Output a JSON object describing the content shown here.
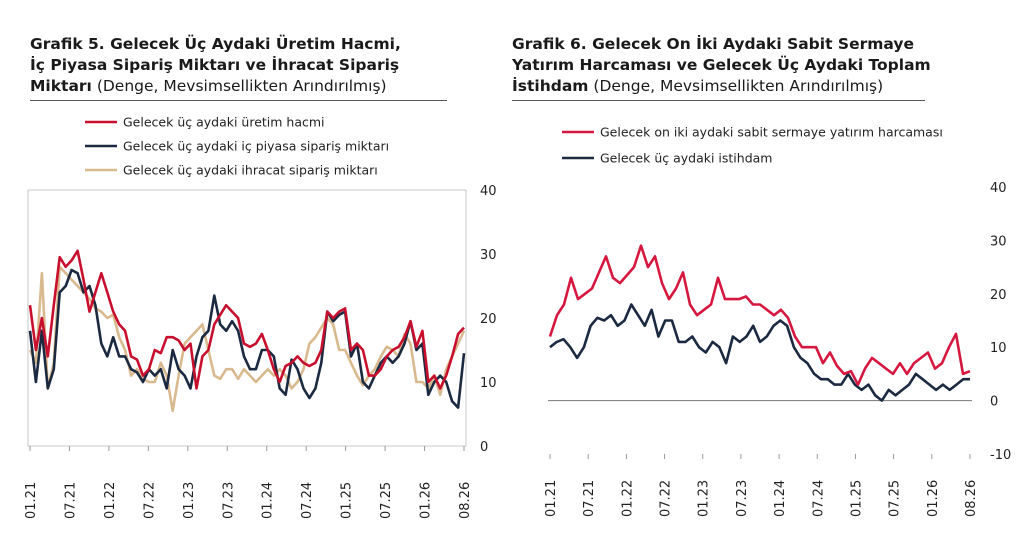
{
  "colors": {
    "red": "#c8102e",
    "navy": "#1b2a41",
    "beige": "#d9b98e",
    "rose": "#d6173f",
    "grid": "#c8c8c8"
  },
  "chart_data": [
    {
      "type": "line",
      "title_bold": "Grafik 5. Gelecek Üç Aydaki Üretim Hacmi, İç Piyasa Sipariş Miktarı ve İhracat Sipariş Miktarı",
      "title_normal": "(Denge, Mevsimsellikten Arındırılmış)",
      "title_lines": [
        "Grafik 5. Gelecek Üç Aydaki Üretim Hacmi,",
        "İç Piyasa Sipariş Miktarı ve İhracat Sipariş",
        "Miktarı"
      ],
      "ylim": [
        0,
        40
      ],
      "yticks": [
        "0",
        "10",
        "20",
        "30",
        "40"
      ],
      "xticks": [
        "01.21",
        "07.21",
        "01.22",
        "07.22",
        "01.23",
        "07.23",
        "01.24",
        "07.24",
        "01.25",
        "07.25",
        "01.26",
        "08.26"
      ],
      "legend": "top",
      "series": [
        {
          "name": "Gelecek üç aydaki üretim hacmi",
          "color": "#c8102e",
          "values": [
            22,
            15,
            20,
            14,
            22,
            29.5,
            28,
            29,
            30.5,
            26,
            21,
            24,
            27,
            24,
            21,
            19,
            18,
            14,
            13.5,
            11,
            12,
            15,
            14.5,
            17,
            17,
            16.5,
            15,
            16,
            9,
            14,
            15,
            19,
            20.5,
            22,
            21,
            20,
            16,
            15.5,
            16,
            17.5,
            15,
            12,
            10,
            12.5,
            13,
            14,
            13,
            12.5,
            13,
            15,
            21,
            20,
            21,
            21.5,
            15,
            16,
            15,
            11,
            11,
            12,
            14,
            15,
            15.5,
            17,
            19.5,
            15.5,
            18,
            10,
            11,
            9,
            11,
            14,
            17.5,
            18.5
          ]
        },
        {
          "name": "Gelecek üç aydaki iç piyasa sipariş miktarı",
          "color": "#1b2a41",
          "values": [
            18,
            10,
            18,
            9,
            12,
            24,
            25,
            27.5,
            27,
            24,
            25,
            22,
            16,
            14,
            17,
            14,
            14,
            12,
            11.5,
            10,
            12,
            11,
            12,
            9,
            15,
            12,
            11,
            9,
            14,
            17,
            18,
            23.5,
            19,
            18,
            19.5,
            18,
            14,
            12,
            12,
            15,
            15,
            14,
            9,
            8,
            13.5,
            12,
            9,
            7.5,
            9,
            13,
            21,
            19.5,
            20.5,
            21,
            14,
            16,
            10,
            9,
            11,
            13,
            14,
            13,
            14,
            16,
            19.5,
            15,
            16,
            8,
            10,
            11,
            10,
            7,
            6,
            14.5
          ]
        },
        {
          "name": "Gelecek üç aydaki ihracat sipariş miktarı",
          "color": "#d9b98e",
          "values": [
            15,
            13,
            27,
            9,
            13,
            28,
            27,
            26,
            25,
            24,
            23,
            21.5,
            21,
            20,
            20.5,
            17,
            15,
            11,
            12,
            10.5,
            10,
            10,
            13,
            11,
            5.5,
            11,
            16,
            17,
            18,
            19,
            15,
            11,
            10.5,
            12,
            12,
            10.5,
            12,
            11,
            10,
            11,
            12,
            11,
            12,
            11,
            9,
            10,
            12,
            16,
            17,
            18.5,
            20,
            19,
            15,
            15,
            13,
            11,
            9.5,
            11,
            12,
            14,
            15.5,
            15,
            14,
            17.5,
            16,
            10,
            10,
            9,
            11,
            8,
            12,
            14,
            16,
            18
          ]
        }
      ]
    },
    {
      "type": "line",
      "title_bold": "Grafik 6. Gelecek On İki Aydaki Sabit Sermaye Yatırım Harcaması ve Gelecek Üç Aydaki Toplam İstihdam",
      "title_normal": "(Denge, Mevsimsellikten Arındırılmış)",
      "title_lines": [
        "Grafik 6. Gelecek On İki Aydaki Sabit Sermaye",
        "Yatırım Harcaması ve Gelecek Üç Aydaki Toplam",
        "İstihdam"
      ],
      "ylim": [
        -10,
        40
      ],
      "yticks": [
        "-10",
        "0",
        "10",
        "20",
        "30",
        "40"
      ],
      "xticks": [
        "01.21",
        "07.21",
        "01.22",
        "07.22",
        "01.23",
        "07.23",
        "01.24",
        "07.24",
        "01.25",
        "07.25",
        "01.26",
        "08.26"
      ],
      "legend": "top",
      "series": [
        {
          "name": "Gelecek on iki aydaki sabit sermaye yatırım harcaması",
          "color": "#d6173f",
          "values": [
            12,
            16,
            18,
            23,
            19,
            20,
            21,
            24,
            27,
            23,
            22,
            23.5,
            25,
            29,
            25,
            27,
            22,
            19,
            21,
            24,
            18,
            16,
            17,
            18,
            23,
            19,
            19,
            19,
            19.5,
            18,
            18,
            17,
            16,
            17,
            15.5,
            12,
            10,
            10,
            10,
            7,
            9,
            6.5,
            5,
            5.5,
            3,
            6,
            8,
            7,
            6,
            5,
            7,
            5,
            7,
            8,
            9,
            6,
            7,
            10,
            12.5,
            5,
            5.5
          ]
        },
        {
          "name": "Gelecek üç aydaki istihdam",
          "color": "#1b2a41",
          "values": [
            10,
            11,
            11.5,
            10,
            8,
            10,
            14,
            15.5,
            15,
            16,
            14,
            15,
            18,
            16,
            14,
            17,
            12,
            15,
            15,
            11,
            11,
            12,
            10,
            9,
            11,
            10,
            7,
            12,
            11,
            12,
            14,
            11,
            12,
            14,
            15,
            14,
            10,
            8,
            7,
            5,
            4,
            4,
            3,
            3,
            5,
            3,
            2,
            3,
            1,
            0,
            2,
            1,
            2,
            3,
            5,
            4,
            3,
            2,
            3,
            2,
            3,
            4,
            4
          ]
        }
      ]
    }
  ]
}
